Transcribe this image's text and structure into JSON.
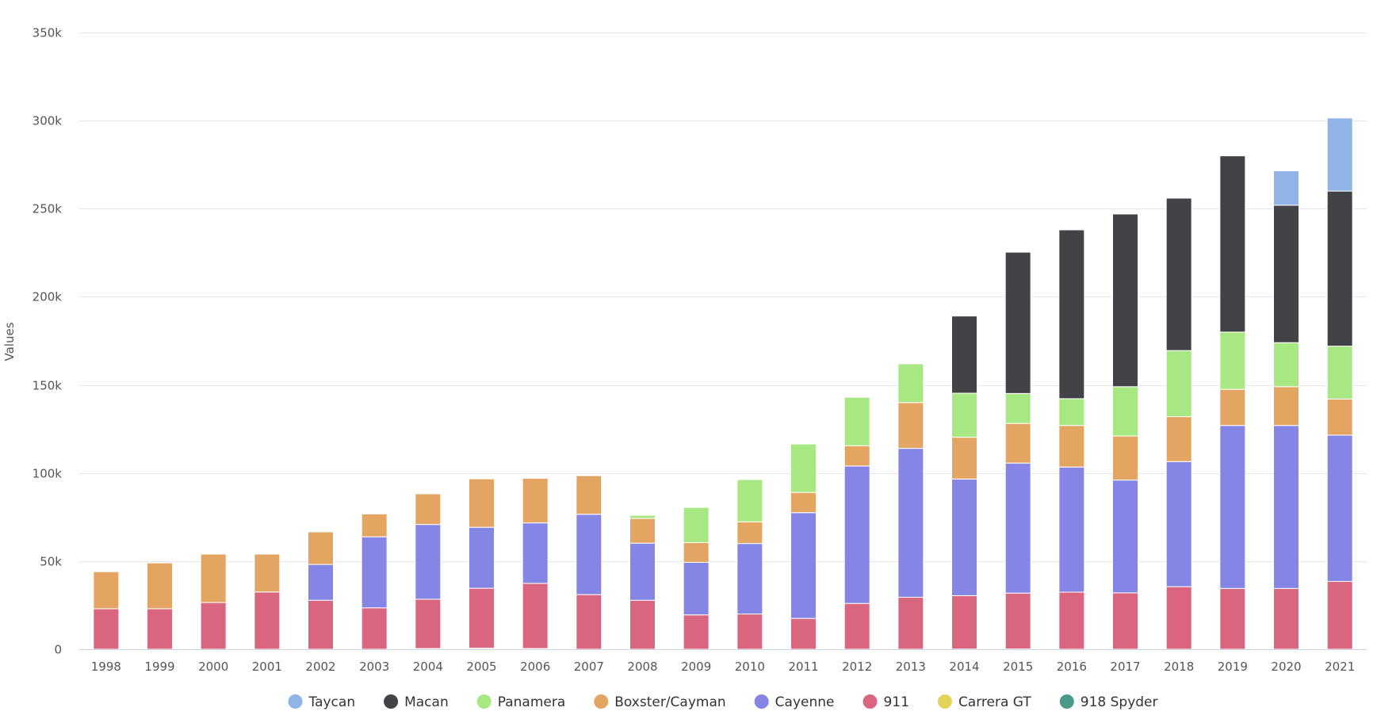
{
  "chart_data": {
    "type": "bar",
    "stacked": true,
    "ylabel": "Values",
    "ylim": [
      0,
      350000
    ],
    "y_ticks": [
      0,
      50000,
      100000,
      150000,
      200000,
      250000,
      300000,
      350000
    ],
    "y_tick_labels": [
      "0",
      "50k",
      "100k",
      "150k",
      "200k",
      "250k",
      "300k",
      "350k"
    ],
    "grid": true,
    "legend_position": "bottom",
    "categories": [
      "1998",
      "1999",
      "2000",
      "2001",
      "2002",
      "2003",
      "2004",
      "2005",
      "2006",
      "2007",
      "2008",
      "2009",
      "2010",
      "2011",
      "2012",
      "2013",
      "2014",
      "2015",
      "2016",
      "2017",
      "2018",
      "2019",
      "2020",
      "2021"
    ],
    "series": [
      {
        "name": "918 Spyder",
        "color": "#4a9a8a",
        "values": [
          0,
          0,
          0,
          0,
          0,
          0,
          0,
          0,
          0,
          0,
          0,
          0,
          0,
          0,
          0,
          0,
          100,
          150,
          0,
          0,
          0,
          0,
          0,
          0
        ]
      },
      {
        "name": "Carrera GT",
        "color": "#e4d35a",
        "values": [
          0,
          0,
          0,
          0,
          0,
          0,
          400,
          600,
          400,
          0,
          0,
          0,
          0,
          0,
          0,
          0,
          0,
          0,
          0,
          0,
          0,
          0,
          0,
          0
        ]
      },
      {
        "name": "911",
        "color": "#d9667e",
        "values": [
          23000,
          23000,
          26500,
          32500,
          27800,
          23500,
          28000,
          34000,
          37000,
          31000,
          27800,
          19500,
          20000,
          17500,
          26000,
          29500,
          30300,
          31700,
          32400,
          32000,
          35500,
          34500,
          34500,
          38500
        ]
      },
      {
        "name": "Cayenne",
        "color": "#8485e4",
        "values": [
          0,
          0,
          0,
          0,
          20300,
          40300,
          42400,
          34600,
          34300,
          45600,
          32400,
          29800,
          40000,
          60000,
          78000,
          84500,
          66200,
          73800,
          71000,
          64000,
          71000,
          92500,
          92500,
          83000
        ]
      },
      {
        "name": "Boxster/Cayman",
        "color": "#e4a562",
        "values": [
          21000,
          26000,
          27500,
          21500,
          18500,
          13000,
          17400,
          27500,
          25300,
          21900,
          14000,
          11200,
          12300,
          11500,
          11500,
          26000,
          23700,
          22500,
          23600,
          25000,
          25500,
          20500,
          22000,
          20500
        ]
      },
      {
        "name": "Panamera",
        "color": "#a8e882",
        "values": [
          0,
          0,
          0,
          0,
          0,
          0,
          0,
          0,
          0,
          0,
          1800,
          20000,
          24000,
          27500,
          27500,
          22000,
          25000,
          17000,
          15200,
          28000,
          37500,
          32500,
          25000,
          30000
        ]
      },
      {
        "name": "Macan",
        "color": "#434347",
        "values": [
          0,
          0,
          0,
          0,
          0,
          0,
          0,
          0,
          0,
          0,
          0,
          0,
          0,
          0,
          0,
          0,
          43800,
          80200,
          95800,
          98000,
          86500,
          100000,
          78000,
          88000
        ]
      },
      {
        "name": "Taycan",
        "color": "#8fb4e8",
        "values": [
          0,
          0,
          0,
          0,
          0,
          0,
          0,
          0,
          0,
          0,
          0,
          0,
          0,
          0,
          0,
          0,
          0,
          0,
          0,
          0,
          0,
          0,
          19500,
          41500
        ]
      }
    ],
    "legend_order": [
      "Taycan",
      "Macan",
      "Panamera",
      "Boxster/Cayman",
      "Cayenne",
      "911",
      "Carrera GT",
      "918 Spyder"
    ]
  }
}
